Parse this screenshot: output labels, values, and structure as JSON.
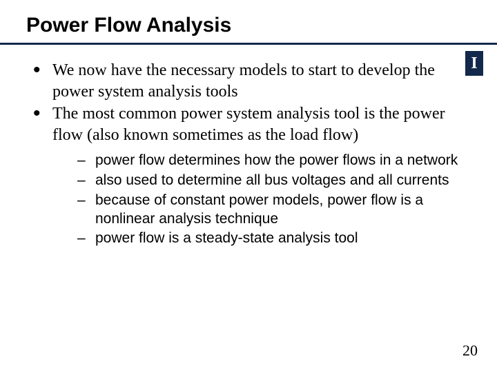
{
  "title": "Power Flow Analysis",
  "colors": {
    "rule": "#13294b",
    "logo_bg": "#13294b",
    "logo_fg": "#ffffff"
  },
  "logo_letter": "I",
  "logo_fontsize": 24,
  "bullets": [
    "We now have the necessary models to start to develop the power system analysis tools",
    "The most common power system analysis tool is the power flow (also known sometimes as the load flow)"
  ],
  "subbullets": [
    "power flow determines how the power flows in a network",
    "also used to determine all bus voltages and all currents",
    "because of constant power models, power flow is a nonlinear analysis technique",
    "power flow is a steady-state analysis tool"
  ],
  "page_number": "20"
}
